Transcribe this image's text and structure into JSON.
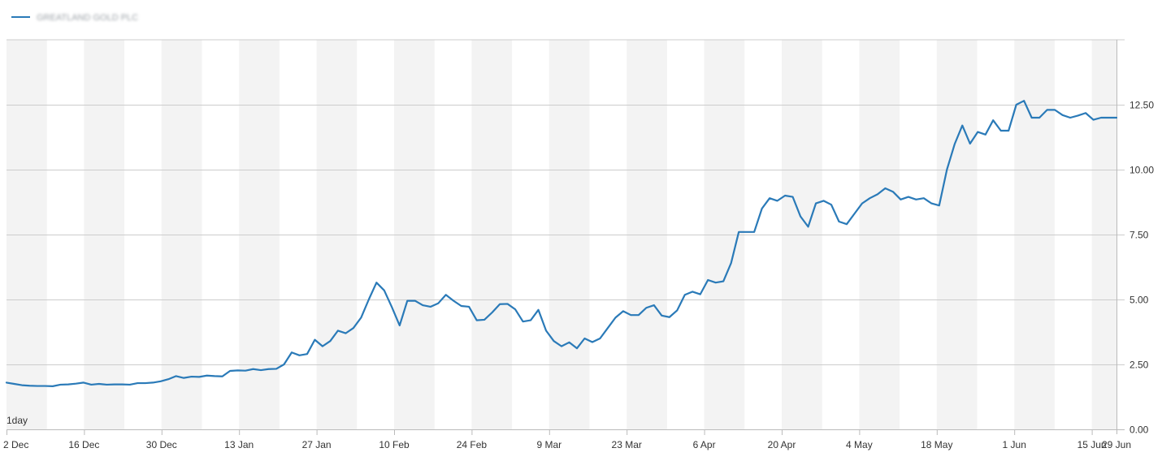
{
  "legend": {
    "series_name": "GREATLAND GOLD PLC"
  },
  "interval_label": "1day",
  "colors": {
    "line": "#2a7ab8",
    "band": "#f3f3f3",
    "grid": "#cccccc",
    "axis": "#bbbbbb",
    "text": "#333333"
  },
  "chart_data": {
    "type": "line",
    "title": "",
    "xlabel": "",
    "ylabel": "",
    "y_axis_side": "right",
    "ylim": [
      0,
      15
    ],
    "y_ticks": [
      0,
      2.5,
      5,
      7.5,
      10,
      12.5
    ],
    "y_tick_labels": [
      "0.00",
      "2.50",
      "5.00",
      "7.50",
      "10.00",
      "12.50"
    ],
    "x_tick_labels": [
      "2 Dec",
      "16 Dec",
      "30 Dec",
      "13 Jan",
      "27 Jan",
      "10 Feb",
      "24 Feb",
      "9 Mar",
      "23 Mar",
      "6 Apr",
      "20 Apr",
      "4 May",
      "18 May",
      "1 Jun",
      "15 Jun",
      "29 Jun"
    ],
    "alternating_bands": true,
    "grid": true,
    "series": [
      {
        "name": "GREATLAND GOLD PLC",
        "values": [
          1.8,
          1.75,
          1.7,
          1.68,
          1.67,
          1.67,
          1.66,
          1.72,
          1.73,
          1.76,
          1.8,
          1.72,
          1.75,
          1.72,
          1.73,
          1.73,
          1.72,
          1.78,
          1.78,
          1.8,
          1.85,
          1.93,
          2.05,
          1.98,
          2.03,
          2.02,
          2.07,
          2.05,
          2.04,
          2.25,
          2.27,
          2.26,
          2.32,
          2.28,
          2.32,
          2.33,
          2.5,
          2.96,
          2.85,
          2.9,
          3.45,
          3.2,
          3.4,
          3.8,
          3.7,
          3.9,
          4.3,
          5.0,
          5.65,
          5.35,
          4.7,
          4.0,
          4.95,
          4.95,
          4.78,
          4.72,
          4.85,
          5.18,
          4.95,
          4.75,
          4.72,
          4.2,
          4.22,
          4.5,
          4.82,
          4.83,
          4.62,
          4.15,
          4.2,
          4.6,
          3.8,
          3.4,
          3.2,
          3.35,
          3.12,
          3.5,
          3.36,
          3.5,
          3.9,
          4.3,
          4.55,
          4.4,
          4.4,
          4.68,
          4.78,
          4.38,
          4.32,
          4.58,
          5.18,
          5.3,
          5.2,
          5.75,
          5.65,
          5.7,
          6.4,
          7.6,
          7.6,
          7.6,
          8.5,
          8.9,
          8.8,
          9.0,
          8.95,
          8.2,
          7.8,
          8.7,
          8.8,
          8.65,
          8.0,
          7.9,
          8.3,
          8.7,
          8.9,
          9.05,
          9.28,
          9.15,
          8.85,
          8.95,
          8.85,
          8.9,
          8.7,
          8.62,
          10.0,
          10.98,
          11.7,
          11.0,
          11.45,
          11.35,
          11.9,
          11.5,
          11.5,
          12.5,
          12.65,
          12.0,
          12.0,
          12.3,
          12.3,
          12.1,
          12.0,
          12.08,
          12.18,
          11.92,
          12.0,
          12.0,
          12.0
        ]
      }
    ]
  }
}
